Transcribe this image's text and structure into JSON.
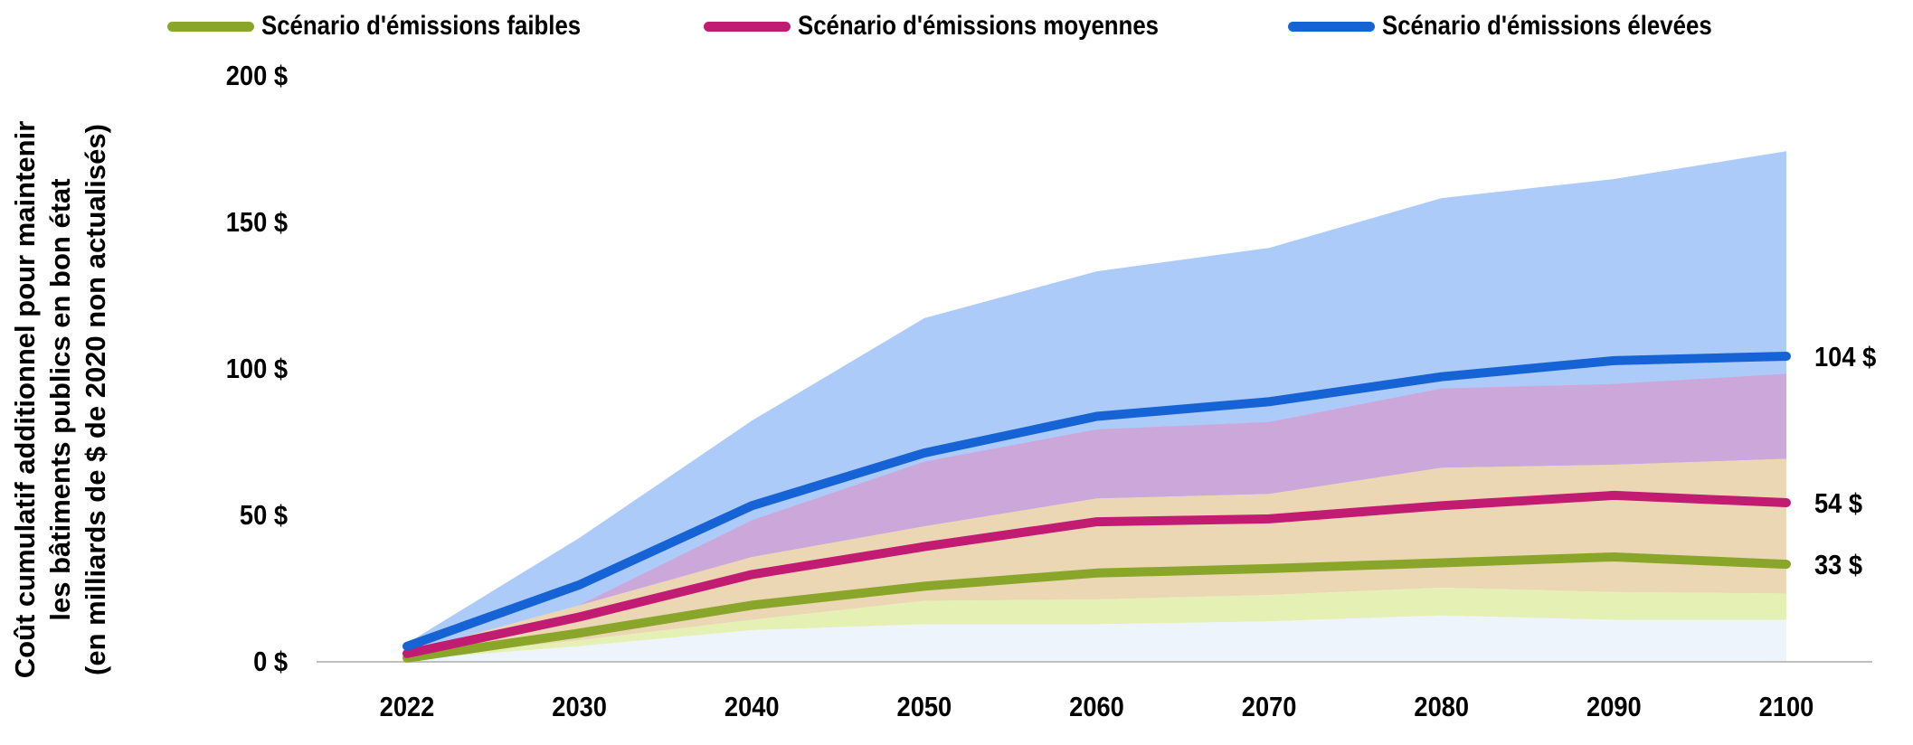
{
  "chart_data": {
    "type": "line",
    "title": "",
    "ylabel_lines": [
      "Coût cumulatif additionnel pour maintenir",
      "les bâtiments publics en bon état",
      "(en milliards de $ de 2020 non actualisés)"
    ],
    "xlabel": "",
    "categories": [
      "2022",
      "2030",
      "2040",
      "2050",
      "2060",
      "2070",
      "2080",
      "2090",
      "2100"
    ],
    "ylim": [
      0,
      200
    ],
    "yticks": [
      0,
      50,
      100,
      150,
      200
    ],
    "ytick_labels": [
      "0 $",
      "50 $",
      "100 $",
      "150 $",
      "200 $"
    ],
    "legend_position": "top",
    "series": [
      {
        "name": "Scénario d'émissions faibles",
        "color": "#8aa62a",
        "band_color": "#e4f0b4",
        "values": [
          1,
          9.5,
          19,
          25.5,
          30,
          31.5,
          33.5,
          35.5,
          33
        ],
        "band_low": [
          0.5,
          5,
          10.5,
          12.5,
          12.5,
          13.5,
          15.5,
          14,
          14
        ],
        "band_high": [
          1.5,
          11,
          20.5,
          26.5,
          30.5,
          31.5,
          33.5,
          33.5,
          33
        ],
        "end_label": "33 $"
      },
      {
        "name": "Scénario d'émissions moyennes",
        "color": "#c21b72",
        "band_color": "#ecd7b5",
        "values": [
          2.5,
          15,
          29.5,
          39,
          47.5,
          48.5,
          53,
          56.5,
          54
        ],
        "band_low": [
          1,
          7,
          14,
          20.5,
          21,
          22.5,
          25,
          23.5,
          23
        ],
        "band_high": [
          3,
          19,
          35.5,
          46,
          55.5,
          57,
          66,
          67,
          69
        ],
        "end_label": "54 $"
      },
      {
        "name": "Scénario d'émissions élevées",
        "color": "#1563d4",
        "band_color": "#adcbf8",
        "values": [
          5,
          26,
          53,
          71,
          83.5,
          88.5,
          97,
          102.5,
          104
        ],
        "band_low": [
          2,
          18,
          46,
          64,
          72,
          74,
          77,
          76,
          74
        ],
        "band_high": [
          6,
          42,
          82,
          117,
          133,
          141,
          158,
          164.5,
          174
        ],
        "end_label": "104 $"
      }
    ],
    "overlap_bands": [
      {
        "name": "high-medium",
        "color": "#cca8da",
        "low": [
          2,
          18,
          29.5,
          39,
          47.5,
          48.5,
          53,
          56.5,
          54
        ],
        "high": [
          3,
          19,
          48,
          68,
          79,
          81.5,
          93,
          94.5,
          98
        ]
      },
      {
        "name": "low-base",
        "color": "#eef4fc",
        "low": [
          0,
          0,
          0,
          0,
          0,
          0,
          0,
          0,
          0
        ],
        "high": [
          0.5,
          5,
          10.5,
          12.5,
          12.5,
          13.5,
          15.5,
          14,
          14
        ]
      }
    ]
  }
}
